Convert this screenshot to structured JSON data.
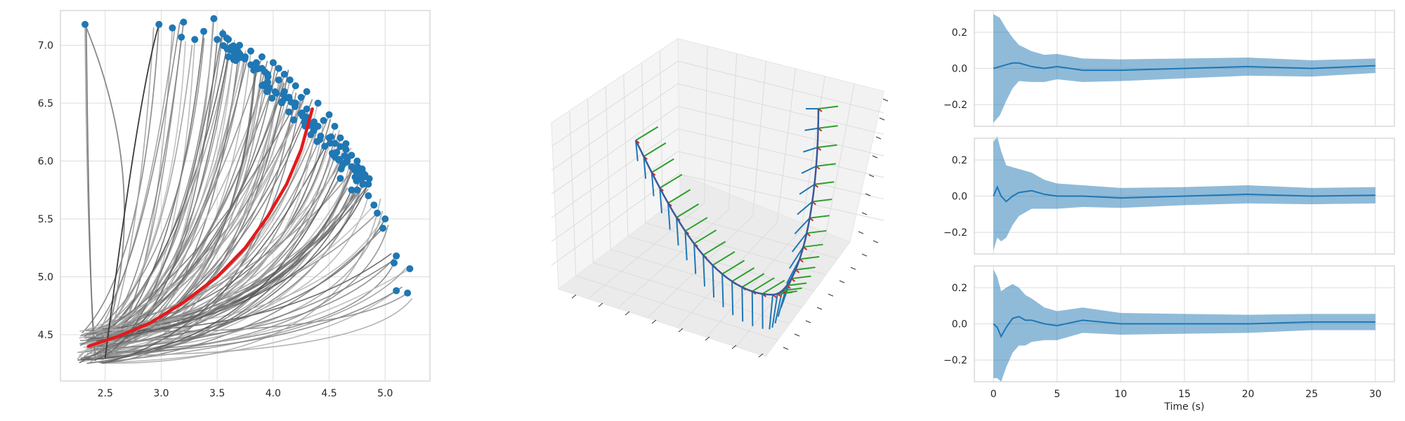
{
  "chart_data": [
    {
      "type": "line",
      "subplot": "trajectories-xy",
      "title": "",
      "xlabel": "",
      "ylabel": "",
      "xlim": [
        2.1,
        5.4
      ],
      "ylim": [
        4.1,
        7.3
      ],
      "xticks": [
        "2.5",
        "3.0",
        "3.5",
        "4.0",
        "4.5",
        "5.0"
      ],
      "yticks": [
        "4.5",
        "5.0",
        "5.5",
        "6.0",
        "6.5",
        "7.0"
      ],
      "grid": true,
      "sample_trajectories": {
        "count": 120,
        "color": "#555555",
        "start_region": {
          "x": [
            2.25,
            2.5
          ],
          "y": [
            4.25,
            4.55
          ]
        },
        "endpoint_color": "#1f77b4"
      },
      "endpoints": [
        [
          2.32,
          7.18
        ],
        [
          2.98,
          7.18
        ],
        [
          3.1,
          7.15
        ],
        [
          3.2,
          7.2
        ],
        [
          3.47,
          7.23
        ],
        [
          3.18,
          7.07
        ],
        [
          3.3,
          7.05
        ],
        [
          3.38,
          7.12
        ],
        [
          3.5,
          7.05
        ],
        [
          3.6,
          7.05
        ],
        [
          3.7,
          7.0
        ],
        [
          3.8,
          6.95
        ],
        [
          3.9,
          6.9
        ],
        [
          4.0,
          6.85
        ],
        [
          4.05,
          6.8
        ],
        [
          4.1,
          6.75
        ],
        [
          4.15,
          6.7
        ],
        [
          4.2,
          6.65
        ],
        [
          4.3,
          6.6
        ],
        [
          4.4,
          6.5
        ],
        [
          4.5,
          6.4
        ],
        [
          4.55,
          6.3
        ],
        [
          4.6,
          6.2
        ],
        [
          4.65,
          6.1
        ],
        [
          4.7,
          6.05
        ],
        [
          4.75,
          6.0
        ],
        [
          4.8,
          5.9
        ],
        [
          4.8,
          5.8
        ],
        [
          4.85,
          5.7
        ],
        [
          4.9,
          5.62
        ],
        [
          4.93,
          5.55
        ],
        [
          5.0,
          5.5
        ],
        [
          4.98,
          5.42
        ],
        [
          5.1,
          5.18
        ],
        [
          5.08,
          5.12
        ],
        [
          5.22,
          5.07
        ],
        [
          5.1,
          4.88
        ],
        [
          5.2,
          4.86
        ],
        [
          3.6,
          6.9
        ],
        [
          3.9,
          6.8
        ],
        [
          4.1,
          6.6
        ],
        [
          4.3,
          6.45
        ],
        [
          4.5,
          6.2
        ],
        [
          4.7,
          5.95
        ],
        [
          4.75,
          5.75
        ],
        [
          4.6,
          5.85
        ],
        [
          4.4,
          6.3
        ],
        [
          4.2,
          6.5
        ],
        [
          3.95,
          6.75
        ],
        [
          3.75,
          6.9
        ],
        [
          3.55,
          7.1
        ],
        [
          4.85,
          5.8
        ],
        [
          4.65,
          6.15
        ],
        [
          4.45,
          6.35
        ],
        [
          4.25,
          6.55
        ],
        [
          4.05,
          6.7
        ],
        [
          3.85,
          6.85
        ],
        [
          3.65,
          6.95
        ],
        [
          4.82,
          5.88
        ],
        [
          4.7,
          5.75
        ]
      ],
      "mean_trajectory": {
        "color": "#e31a1c",
        "x": [
          2.35,
          2.6,
          2.9,
          3.2,
          3.5,
          3.75,
          3.95,
          4.12,
          4.25,
          4.35
        ],
        "y": [
          4.4,
          4.48,
          4.6,
          4.78,
          5.0,
          5.25,
          5.52,
          5.8,
          6.1,
          6.45
        ]
      }
    },
    {
      "type": "line",
      "subplot": "frames-3d",
      "title": "",
      "xlabel": "",
      "ylabel": "",
      "grid": true,
      "series": [
        {
          "role": "trajectory",
          "color": "#3b5998"
        },
        {
          "role": "frame-axis-1",
          "color": "#1f77b4"
        },
        {
          "role": "frame-axis-2",
          "color": "#2ca02c"
        },
        {
          "role": "frame-axis-3",
          "color": "#d62728"
        }
      ]
    },
    {
      "type": "area",
      "subplot": "uncertainty-1",
      "title": "",
      "xlabel": "",
      "ylabel": "",
      "xlim": [
        -1.5,
        31.5
      ],
      "ylim": [
        -0.32,
        0.32
      ],
      "yticks": [
        "0.2",
        "0.0",
        "−0.2"
      ],
      "x": [
        0,
        0.5,
        1,
        1.5,
        2,
        3,
        4,
        5,
        7,
        10,
        15,
        20,
        25,
        30
      ],
      "mean": [
        0.0,
        0.01,
        0.02,
        0.03,
        0.03,
        0.01,
        0.0,
        0.01,
        -0.01,
        -0.01,
        0.0,
        0.01,
        0.0,
        0.015
      ],
      "band": [
        0.3,
        0.27,
        0.2,
        0.14,
        0.1,
        0.085,
        0.075,
        0.07,
        0.065,
        0.06,
        0.055,
        0.05,
        0.045,
        0.04
      ],
      "color": "#1f77b4"
    },
    {
      "type": "area",
      "subplot": "uncertainty-2",
      "title": "",
      "xlabel": "",
      "ylabel": "",
      "xlim": [
        -1.5,
        31.5
      ],
      "ylim": [
        -0.32,
        0.32
      ],
      "yticks": [
        "0.2",
        "0.0",
        "−0.2"
      ],
      "x": [
        0,
        0.3,
        0.6,
        1,
        1.5,
        2,
        3,
        4,
        5,
        7,
        10,
        15,
        20,
        25,
        30
      ],
      "mean": [
        0.0,
        0.05,
        0.0,
        -0.03,
        0.0,
        0.02,
        0.03,
        0.01,
        0.0,
        0.0,
        -0.01,
        0.0,
        0.01,
        0.0,
        0.005
      ],
      "band": [
        0.3,
        0.28,
        0.25,
        0.2,
        0.16,
        0.13,
        0.1,
        0.08,
        0.07,
        0.06,
        0.055,
        0.05,
        0.05,
        0.045,
        0.045
      ],
      "color": "#1f77b4"
    },
    {
      "type": "area",
      "subplot": "uncertainty-3",
      "title": "",
      "xlabel": "Time (s)",
      "ylabel": "",
      "xlim": [
        -1.5,
        31.5
      ],
      "ylim": [
        -0.32,
        0.32
      ],
      "xticks": [
        "0",
        "5",
        "10",
        "15",
        "20",
        "25",
        "30"
      ],
      "yticks": [
        "0.2",
        "0.0",
        "−0.2"
      ],
      "x": [
        0,
        0.3,
        0.6,
        1,
        1.5,
        2,
        2.5,
        3,
        4,
        5,
        7,
        10,
        15,
        20,
        25,
        30
      ],
      "mean": [
        0.0,
        -0.02,
        -0.07,
        -0.02,
        0.03,
        0.04,
        0.02,
        0.02,
        0.0,
        -0.01,
        0.02,
        0.0,
        0.0,
        0.0,
        0.01,
        0.01
      ],
      "band": [
        0.3,
        0.28,
        0.25,
        0.22,
        0.19,
        0.16,
        0.14,
        0.12,
        0.09,
        0.08,
        0.07,
        0.06,
        0.055,
        0.05,
        0.045,
        0.045
      ],
      "color": "#1f77b4"
    }
  ]
}
